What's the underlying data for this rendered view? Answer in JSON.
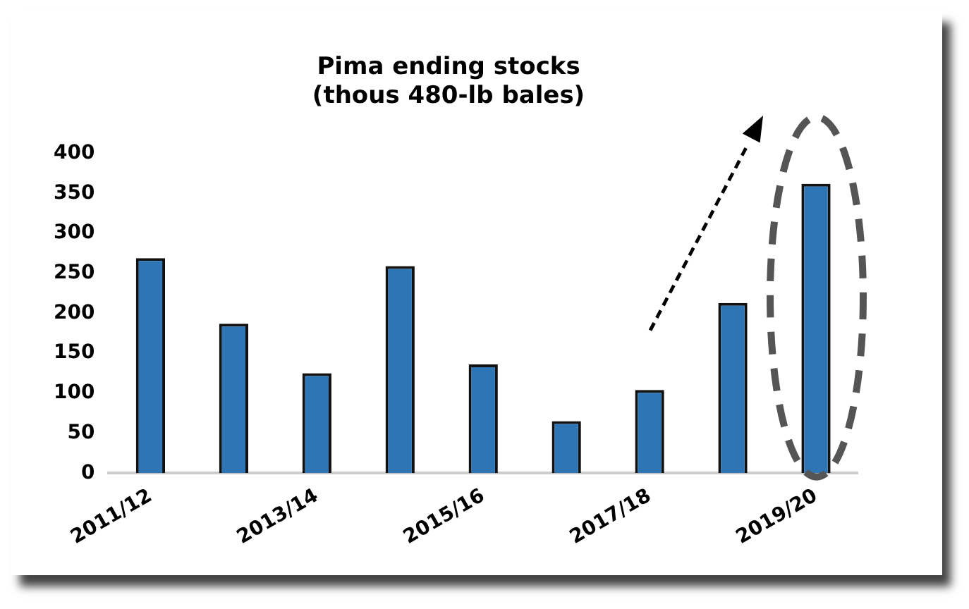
{
  "chart_data": {
    "type": "bar",
    "title": "Pima ending stocks",
    "subtitle": "(thous 480-lb bales)",
    "categories": [
      "2011/12",
      null,
      "2013/14",
      null,
      "2015/16",
      null,
      "2017/18",
      null,
      "2019/20"
    ],
    "values": [
      269,
      187,
      125,
      259,
      136,
      65,
      104,
      213,
      362
    ],
    "color": "#2e75b6",
    "ylim": [
      0,
      400
    ],
    "yticks": [
      0,
      50,
      100,
      150,
      200,
      250,
      300,
      350,
      400
    ],
    "grid": false,
    "legend": false
  }
}
